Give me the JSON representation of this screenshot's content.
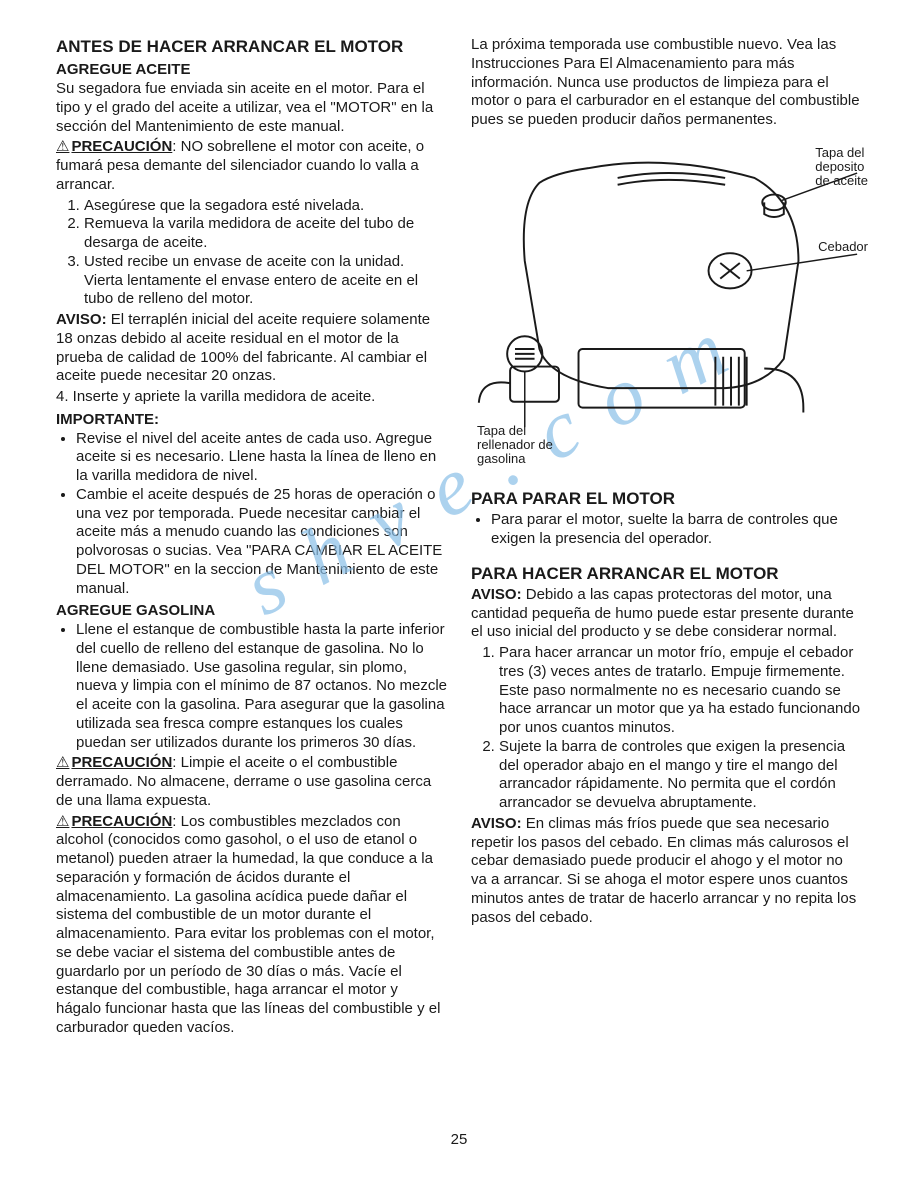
{
  "pageNumber": "25",
  "watermark": "s h  v e . c o m",
  "left": {
    "title": "ANTES DE HACER ARRANCAR EL MOTOR",
    "s1_head": "AGREGUE ACEITE",
    "s1_p1": "Su segadora fue enviada sin aceite en el motor. Para el tipo y el grado del aceite a utilizar, vea el \"MOTOR\" en la sección del Mantenimiento de este manual.",
    "s1_warn_label": "PRECAUCIÓN",
    "s1_warn_text": ": NO sobrellene el motor con aceite, o fumará pesa demante del silenciador cuando lo valla a arrancar.",
    "s1_li1": "Asegúrese que la segadora esté nivelada.",
    "s1_li2": "Remueva la varila medidora de aceite del tubo de desarga de aceite.",
    "s1_li3": "Usted recibe un envase de aceite con la unidad. Vierta lentamente el envase entero de aceite en el tubo de relleno del motor.",
    "s1_aviso_label": "AVISO:",
    "s1_aviso_text": " El terraplén inicial del aceite requiere solamente 18 onzas debido al aceite residual en el motor de la prueba de calidad de 100% del fabricante. Al cambiar el aceite puede necesitar 20 onzas.",
    "s1_li4": "4.  Inserte y apriete la varilla medidora de aceite.",
    "s1_imp_label": "IMPORTANTE:",
    "s1_imp_b1": "Revise el nivel del aceite antes de cada uso. Agregue aceite si es necesario. Llene hasta la línea de lleno en la varilla medidora de nivel.",
    "s1_imp_b2": "Cambie el aceite después de 25 horas de operación o una vez por temporada. Puede necesitar cambiar el aceite más a menudo cuando las condiciones son polvorosas o sucias. Vea \"PARA CAMBIAR EL ACEITE DEL MOTOR\" en la seccion de Mantenimiento de este manual.",
    "s2_head": "AGREGUE GASOLINA",
    "s2_b1": "Llene el estanque de combustible hasta la parte inferior del cuello de relleno del estanque de gasolina. No lo llene demasiado. Use gasolina regular, sin plomo, nueva y limpia con el mínimo de 87 octanos. No mezcle el aceite con la gasolina. Para asegurar que la gasolina utilizada sea fresca compre estanques los cuales puedan ser utilizados durante los primeros 30 días.",
    "s2_warn1_label": "PRECAUCIÓN",
    "s2_warn1_text": ": Limpie el aceite o el combustible derramado. No almacene, derrame o use gasolina cerca de una llama expuesta.",
    "s2_warn2_label": "PRECAUCIÓN",
    "s2_warn2_text": ": Los combustibles mezclados con alcohol (conocidos como gasohol, o el uso de etanol o metanol) pueden atraer la humedad, la que conduce a la separación y formación de ácidos durante el almacenamiento. La gasolina acídica puede dañar el sistema del combustible de un motor durante el almacenamiento. Para evitar los problemas con el motor, se debe vaciar el sistema del combustible antes de guardarlo por un período de 30 días o más. Vacíe el estanque del combustible, haga arrancar el motor y hágalo funcionar hasta que las líneas del combustible y el carburador queden vacíos."
  },
  "right": {
    "top_p": "La próxima temporada use combustible nuevo. Vea las Instrucciones Para El Almacenamiento para más información. Nunca use productos de limpieza para el motor o para el carburador en el estanque del combustible pues se pueden producir daños permanentes.",
    "diagram": {
      "lbl_tapa_aceite": "Tapa del\ndeposito\nde aceite",
      "lbl_cebador": "Cebador",
      "lbl_tapa_gas": "Tapa del\nrellenador de\ngasolina"
    },
    "s3_title": "PARA PARAR EL MOTOR",
    "s3_b1": "Para parar el motor, suelte la barra de controles que exigen la presencia del operador.",
    "s4_title": "PARA HACER ARRANCAR EL MOTOR",
    "s4_aviso_label": "AVISO:",
    "s4_aviso_text": " Debido a las capas protectoras del motor, una cantidad pequeña de humo puede estar presente durante el uso inicial del producto y se debe considerar normal.",
    "s4_li1": "Para hacer arrancar un motor frío, empuje el cebador tres (3) veces antes de tratarlo. Empuje firmemente. Este paso normalmente no es necesario cuando se hace arrancar un motor que ya ha estado funcionando por unos cuantos minutos.",
    "s4_li2": "Sujete la barra de controles que exigen la presencia del operador abajo en el mango y tire el mango del arrancador rápidamente. No permita que el cordón arrancador se devuelva abruptamente.",
    "s4_aviso2_label": "AVISO:",
    "s4_aviso2_text": " En climas más fríos puede que sea necesario repetir los pasos del cebado. En climas más calurosos el cebar demasiado puede producir el ahogo y el motor no va a arrancar. Si se ahoga el motor espere unos cuantos minutos antes de tratar de hacerlo arrancar y no repita los pasos del cebado."
  }
}
